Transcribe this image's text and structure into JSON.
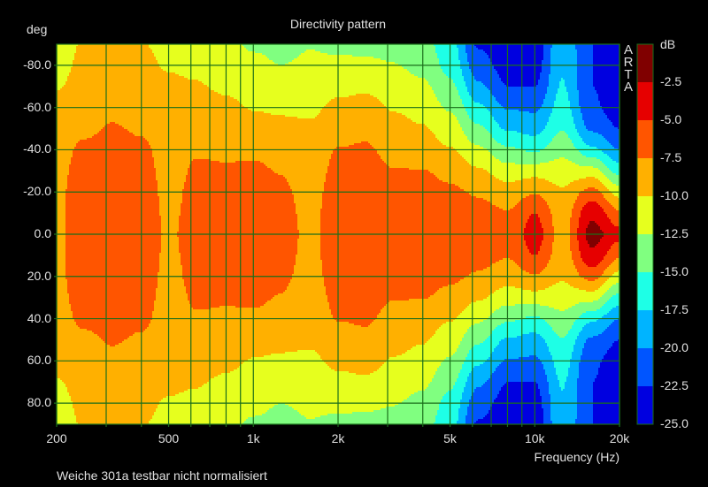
{
  "chart_data": {
    "type": "heatmap",
    "title": "Directivity pattern",
    "ylabel": "deg",
    "xlabel": "Frequency (Hz)",
    "footnote": "Weiche 301a testbar nicht normalisiert",
    "watermark": "ARTA",
    "xscale": "log",
    "xlim": [
      200,
      20000
    ],
    "ylim": [
      -90,
      90
    ],
    "x_ticks": [
      {
        "v": 200,
        "label": "200"
      },
      {
        "v": 500,
        "label": "500"
      },
      {
        "v": 1000,
        "label": "1k"
      },
      {
        "v": 2000,
        "label": "2k"
      },
      {
        "v": 5000,
        "label": "5k"
      },
      {
        "v": 10000,
        "label": "10k"
      },
      {
        "v": 20000,
        "label": "20k"
      }
    ],
    "y_ticks": [
      {
        "v": -80,
        "label": "-80.0"
      },
      {
        "v": -60,
        "label": "-60.0"
      },
      {
        "v": -40,
        "label": "-40.0"
      },
      {
        "v": -20,
        "label": "-20.0"
      },
      {
        "v": 0,
        "label": "0.0"
      },
      {
        "v": 20,
        "label": "20.0"
      },
      {
        "v": 40,
        "label": "40.0"
      },
      {
        "v": 60,
        "label": "60.0"
      },
      {
        "v": 80,
        "label": "80.0"
      }
    ],
    "colorbar": {
      "unit": "dB",
      "range": [
        -25,
        0
      ],
      "labels": [
        "-2.5",
        "-5.0",
        "-7.5",
        "-10.0",
        "-12.5",
        "-15.0",
        "-17.5",
        "-20.0",
        "-22.5",
        "-25.0"
      ],
      "colors": [
        "#800000",
        "#e60000",
        "#ff5500",
        "#ffb000",
        "#e6ff1e",
        "#80ff80",
        "#1effe6",
        "#00b4ff",
        "#0055ff",
        "#0000e0"
      ]
    },
    "frequencies": [
      200,
      250,
      315,
      400,
      500,
      630,
      800,
      1000,
      1250,
      1600,
      2000,
      2500,
      3150,
      4000,
      5000,
      6300,
      8000,
      10000,
      12500,
      16000,
      20000
    ],
    "angles_abs": [
      0,
      10,
      20,
      30,
      40,
      50,
      60,
      70,
      80,
      90
    ],
    "symmetric": true,
    "values_db": [
      [
        -8,
        -8,
        -8,
        -8.2,
        -8.5,
        -8.8,
        -9.3,
        -10.2,
        -10.8,
        -11.2
      ],
      [
        -6,
        -6,
        -6.2,
        -6.5,
        -7,
        -8,
        -8.5,
        -9,
        -9.5,
        -9.8
      ],
      [
        -5.5,
        -5.6,
        -5.8,
        -6.2,
        -6.6,
        -7.3,
        -8,
        -8.6,
        -9.2,
        -9.6
      ],
      [
        -5.8,
        -5.9,
        -6.1,
        -6.5,
        -7,
        -7.8,
        -8.5,
        -9,
        -9.5,
        -9.9
      ],
      [
        -7.8,
        -8,
        -8.2,
        -8.4,
        -8.6,
        -8.9,
        -9.2,
        -9.6,
        -10.2,
        -10.6
      ],
      [
        -6.5,
        -6.6,
        -6.8,
        -7.2,
        -7.7,
        -8.3,
        -9,
        -9.8,
        -10.5,
        -11
      ],
      [
        -6.2,
        -6.4,
        -6.8,
        -7.3,
        -7.8,
        -8.5,
        -9.3,
        -10.5,
        -11.5,
        -12
      ],
      [
        -6.2,
        -6.3,
        -6.6,
        -7.1,
        -7.9,
        -8.8,
        -10.2,
        -11.2,
        -12,
        -12.8
      ],
      [
        -6.6,
        -6.8,
        -7.1,
        -7.6,
        -8.2,
        -9.2,
        -10.5,
        -11.5,
        -12.5,
        -13
      ],
      [
        -8,
        -8.1,
        -8.3,
        -8.6,
        -9,
        -9.6,
        -10.5,
        -11.6,
        -12.2,
        -12.6
      ],
      [
        -6,
        -6.1,
        -6.4,
        -6.9,
        -7.4,
        -8.3,
        -9.3,
        -10.8,
        -12,
        -13
      ],
      [
        -5.8,
        -5.9,
        -6.2,
        -6.6,
        -7.2,
        -8,
        -9,
        -10.5,
        -12,
        -13.2
      ],
      [
        -6.3,
        -6.4,
        -6.8,
        -7.4,
        -8.2,
        -9.2,
        -10.2,
        -11.2,
        -12.4,
        -13.2
      ],
      [
        -6,
        -6.1,
        -6.5,
        -7.4,
        -8.6,
        -9.8,
        -10.8,
        -12,
        -13.3,
        -14
      ],
      [
        -6.2,
        -6.4,
        -7,
        -8.2,
        -9.8,
        -11.3,
        -12.8,
        -14.5,
        -15.8,
        -16.6
      ],
      [
        -6.2,
        -6.6,
        -7.8,
        -9.6,
        -12,
        -14.5,
        -17,
        -19.5,
        -21.5,
        -22.8
      ],
      [
        -6.8,
        -7.3,
        -8.8,
        -11.4,
        -14.5,
        -17.8,
        -20.2,
        -22.5,
        -23.5,
        -24
      ],
      [
        -3.8,
        -5,
        -7.8,
        -11,
        -15.5,
        -18.5,
        -20.5,
        -22.5,
        -23.5,
        -24
      ],
      [
        -8.5,
        -8.8,
        -9.6,
        -11.3,
        -13.2,
        -15.2,
        -16.5,
        -17.3,
        -17.8,
        -18
      ],
      [
        -1.5,
        -3,
        -6.5,
        -11.5,
        -17,
        -20.5,
        -22,
        -22.5,
        -22.5,
        -22.5
      ],
      [
        -4,
        -7,
        -11,
        -16,
        -20,
        -22.5,
        -24,
        -24.5,
        -24.8,
        -25
      ]
    ]
  }
}
